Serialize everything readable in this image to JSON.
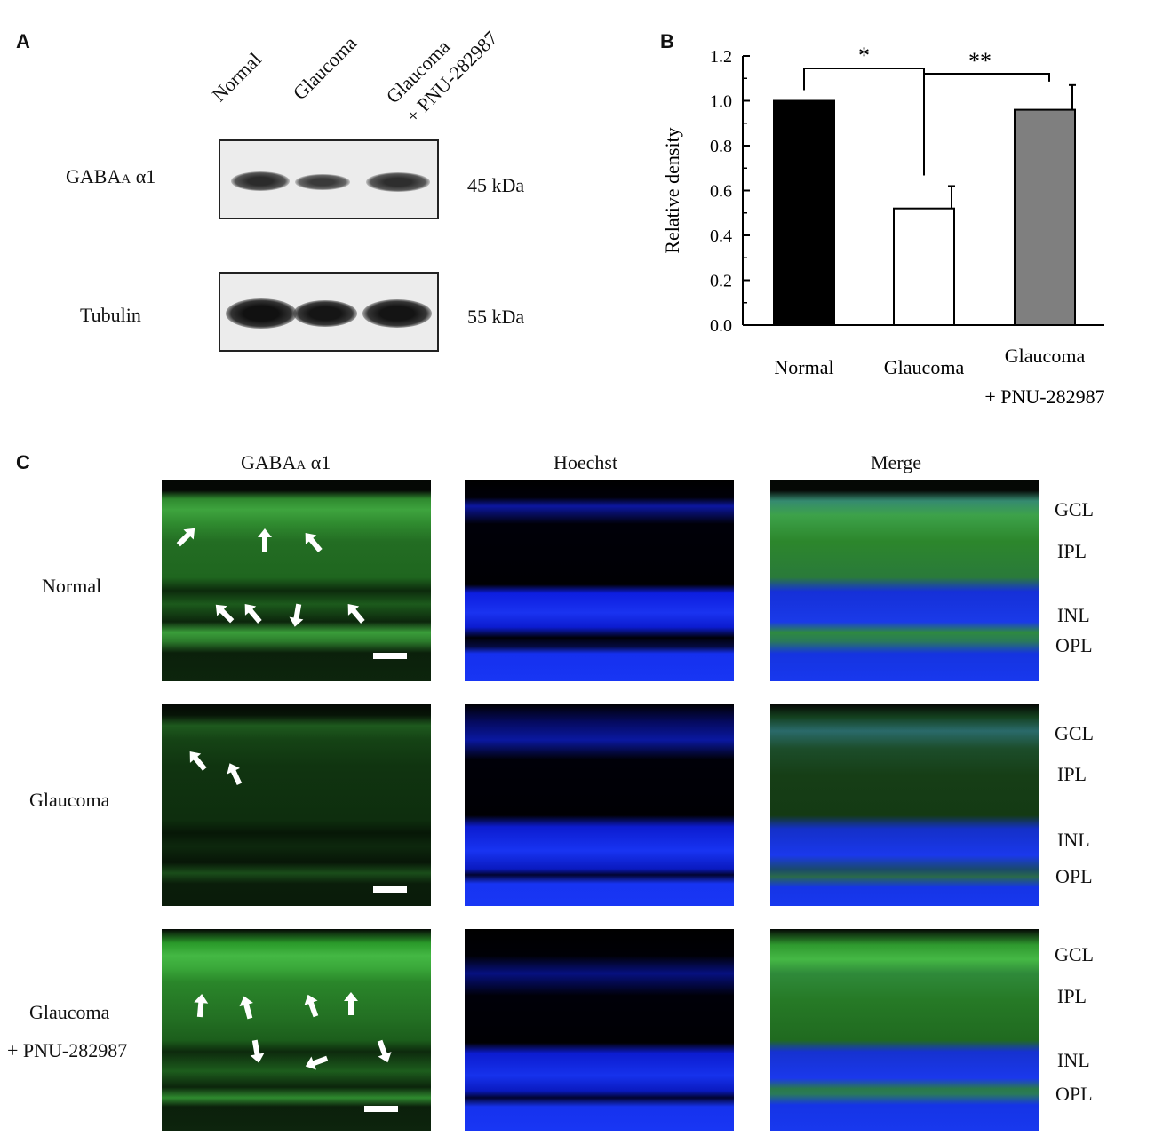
{
  "panels": {
    "a": "A",
    "b": "B",
    "c": "C"
  },
  "panel_a": {
    "lanes": [
      "Normal",
      "Glaucoma",
      "Glaucoma",
      "+ PNU-282987"
    ],
    "blot_rows": [
      {
        "protein_prefix": "GABA",
        "protein_sub": "A",
        "protein_suffix": " α1",
        "size": "45 kDa"
      },
      {
        "protein": "Tubulin",
        "size": "55 kDa"
      }
    ]
  },
  "chart_data": {
    "type": "bar",
    "categories": [
      "Normal",
      "Glaucoma",
      "Glaucoma\n+ PNU-282987"
    ],
    "category_lines": [
      [
        "Normal"
      ],
      [
        "Glaucoma"
      ],
      [
        "Glaucoma",
        "+ PNU-282987"
      ]
    ],
    "values": [
      1.0,
      0.52,
      0.96
    ],
    "errors": [
      0.0,
      0.1,
      0.11
    ],
    "bar_colors": [
      "#000000",
      "#ffffff",
      "#7f7f7f"
    ],
    "ylabel": "Relative density",
    "ylim": [
      0,
      1.2
    ],
    "yticks": [
      "0.0",
      "0.2",
      "0.4",
      "0.6",
      "0.8",
      "1.0",
      "1.2"
    ],
    "significance": [
      {
        "between": [
          "Normal",
          "Glaucoma"
        ],
        "label": "*"
      },
      {
        "between": [
          "Glaucoma",
          "Glaucoma\n+ PNU-282987"
        ],
        "label": "**"
      }
    ],
    "grid": false
  },
  "panel_c": {
    "columns": [
      {
        "prefix": "GABA",
        "sub": "A",
        "suffix": " α1"
      },
      {
        "label": "Hoechst"
      },
      {
        "label": "Merge"
      }
    ],
    "rows": [
      {
        "lines": [
          "Normal"
        ]
      },
      {
        "lines": [
          "Glaucoma"
        ]
      },
      {
        "lines": [
          "Glaucoma",
          "+ PNU-282987"
        ]
      }
    ],
    "layers": [
      "GCL",
      "IPL",
      "INL",
      "OPL"
    ]
  }
}
